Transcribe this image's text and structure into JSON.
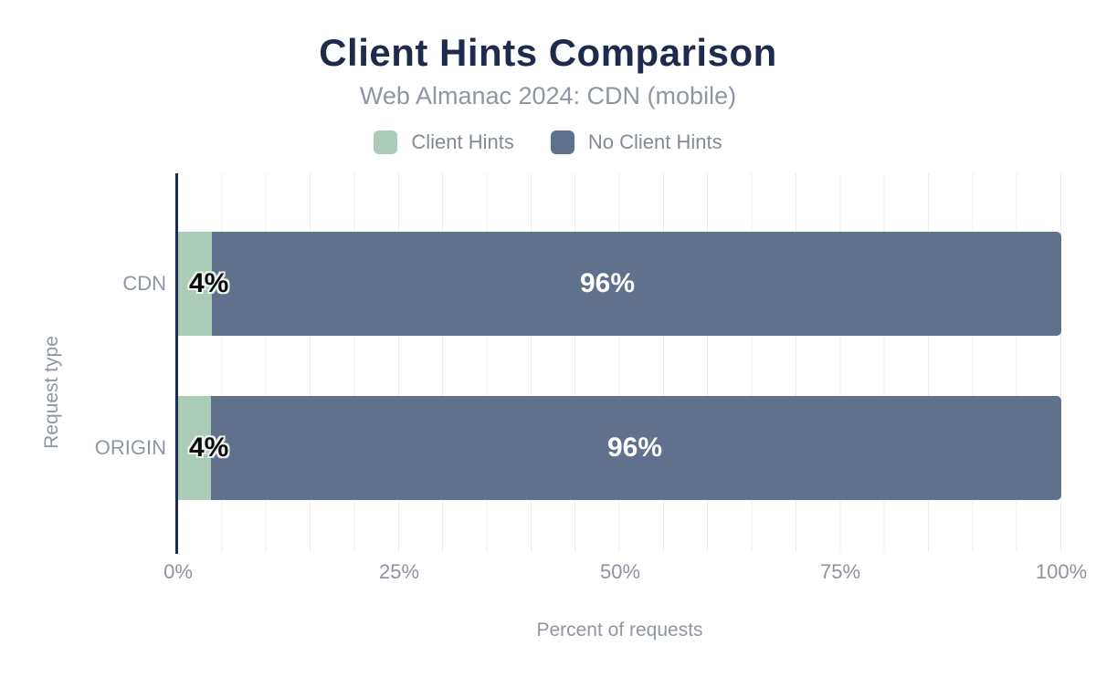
{
  "chart_data": {
    "type": "bar",
    "orientation": "horizontal",
    "stacked": true,
    "title": "Client Hints Comparison",
    "subtitle": "Web Almanac 2024: CDN (mobile)",
    "categories": [
      "CDN",
      "ORIGIN"
    ],
    "series": [
      {
        "name": "Client Hints",
        "color": "#a9cbb7",
        "values": [
          4,
          4
        ],
        "labels": [
          "4%",
          "4%"
        ]
      },
      {
        "name": "No Client Hints",
        "color": "#60718e",
        "values": [
          96,
          96
        ],
        "labels": [
          "96%",
          "96%"
        ]
      }
    ],
    "xlabel": "Percent of requests",
    "ylabel": "Request type",
    "x_ticks": [
      "0%",
      "25%",
      "50%",
      "75%",
      "100%"
    ],
    "xlim": [
      0,
      100
    ],
    "grid": "vertical gridlines every 5%",
    "legend_position": "top"
  },
  "theme": {
    "title_color": "#1f2b4d",
    "axis_line_color": "#1f2b4d",
    "gridline_color": "#ececec",
    "muted_text_color": "#8f96a3",
    "bar_label_dark": "#0b0b0b",
    "bar_label_light": "#ffffff",
    "background": "#ffffff"
  }
}
